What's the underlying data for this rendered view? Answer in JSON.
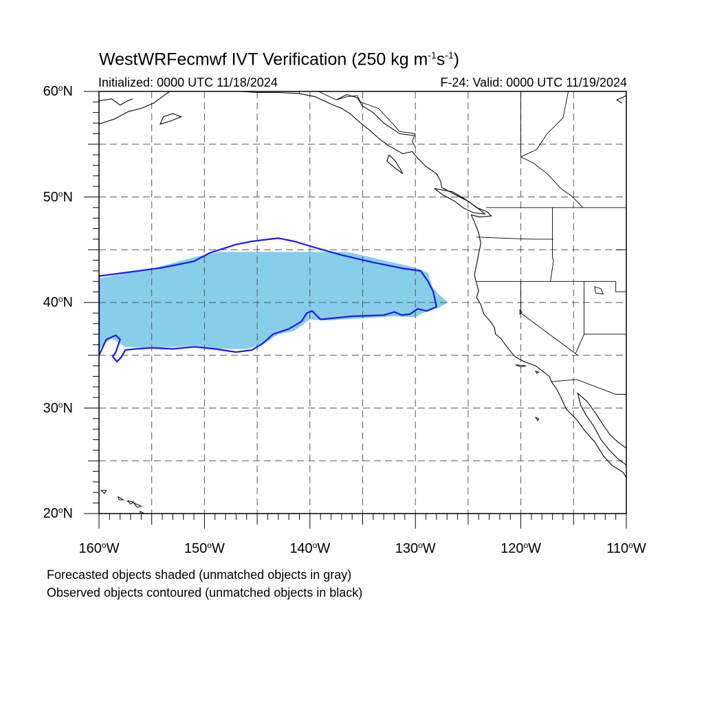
{
  "title": {
    "main": "WestWRFecmwf IVT Verification (250 kg m",
    "sup1": "-1",
    "mid": "s",
    "sup2": "-1",
    "end": ")"
  },
  "init_text": "Initialized: 0000 UTC 11/18/2024",
  "valid_text": "F-24: Valid: 0000 UTC 11/19/2024",
  "footnote_1": "Forecasted objects shaded (unmatched objects in gray)",
  "footnote_2": "Observed objects contoured (unmatched objects in black)",
  "map_extent": {
    "lon_min": -160,
    "lon_max": -110,
    "lat_min": 20,
    "lat_max": 60
  },
  "lat_ticks": [
    {
      "value": 60,
      "label": "60",
      "suffix": "N"
    },
    {
      "value": 50,
      "label": "50",
      "suffix": "N"
    },
    {
      "value": 40,
      "label": "40",
      "suffix": "N"
    },
    {
      "value": 30,
      "label": "30",
      "suffix": "N"
    },
    {
      "value": 20,
      "label": "20",
      "suffix": "N"
    }
  ],
  "lon_ticks": [
    {
      "value": -160,
      "label": "160",
      "suffix": "W"
    },
    {
      "value": -150,
      "label": "150",
      "suffix": "W"
    },
    {
      "value": -140,
      "label": "140",
      "suffix": "W"
    },
    {
      "value": -130,
      "label": "130",
      "suffix": "W"
    },
    {
      "value": -120,
      "label": "120",
      "suffix": "W"
    },
    {
      "value": -110,
      "label": "110",
      "suffix": "W"
    }
  ],
  "colors": {
    "forecast_fill": "#87ceeb",
    "observed_contour": "#1a1aee",
    "coastline": "#000000",
    "grid": "#555555"
  },
  "forecast_object": [
    [
      -160.0,
      42.3
    ],
    [
      -155.0,
      43.2
    ],
    [
      -151.0,
      44.3
    ],
    [
      -148.5,
      44.8
    ],
    [
      -143.0,
      44.8
    ],
    [
      -136.5,
      44.8
    ],
    [
      -133.0,
      44.0
    ],
    [
      -130.0,
      43.3
    ],
    [
      -128.8,
      42.8
    ],
    [
      -128.4,
      41.5
    ],
    [
      -127.8,
      40.8
    ],
    [
      -126.9,
      40.0
    ],
    [
      -127.8,
      39.5
    ],
    [
      -129.3,
      39.0
    ],
    [
      -130.0,
      38.6
    ],
    [
      -132.0,
      38.7
    ],
    [
      -135.0,
      38.5
    ],
    [
      -138.5,
      38.3
    ],
    [
      -140.0,
      38.4
    ],
    [
      -141.5,
      37.3
    ],
    [
      -143.0,
      37.0
    ],
    [
      -144.5,
      36.0
    ],
    [
      -146.0,
      35.6
    ],
    [
      -149.0,
      35.6
    ],
    [
      -151.0,
      35.9
    ],
    [
      -152.5,
      35.8
    ],
    [
      -155.0,
      35.7
    ],
    [
      -157.5,
      35.8
    ],
    [
      -158.8,
      36.6
    ],
    [
      -159.6,
      36.0
    ],
    [
      -160.0,
      35.5
    ]
  ],
  "observed_object": [
    [
      -160.0,
      42.5
    ],
    [
      -157.0,
      42.9
    ],
    [
      -154.0,
      43.3
    ],
    [
      -151.0,
      43.9
    ],
    [
      -149.5,
      44.7
    ],
    [
      -147.0,
      45.5
    ],
    [
      -145.5,
      45.8
    ],
    [
      -143.0,
      46.1
    ],
    [
      -141.5,
      45.8
    ],
    [
      -139.5,
      45.2
    ],
    [
      -137.0,
      44.5
    ],
    [
      -134.0,
      43.8
    ],
    [
      -131.0,
      43.2
    ],
    [
      -129.5,
      43.0
    ],
    [
      -128.8,
      42.0
    ],
    [
      -128.3,
      41.0
    ],
    [
      -128.0,
      39.6
    ],
    [
      -128.9,
      39.2
    ],
    [
      -129.8,
      39.4
    ],
    [
      -130.5,
      38.9
    ],
    [
      -131.3,
      38.8
    ],
    [
      -132.0,
      39.1
    ],
    [
      -133.0,
      38.8
    ],
    [
      -136.0,
      38.7
    ],
    [
      -139.0,
      38.4
    ],
    [
      -139.8,
      39.2
    ],
    [
      -140.3,
      39.0
    ],
    [
      -140.8,
      38.2
    ],
    [
      -142.0,
      37.5
    ],
    [
      -143.5,
      37.0
    ],
    [
      -144.5,
      36.1
    ],
    [
      -145.5,
      35.5
    ],
    [
      -147.0,
      35.3
    ],
    [
      -149.0,
      35.6
    ],
    [
      -151.0,
      35.8
    ],
    [
      -153.0,
      35.6
    ],
    [
      -155.0,
      35.7
    ],
    [
      -156.5,
      35.6
    ],
    [
      -157.5,
      35.5
    ],
    [
      -157.9,
      34.8
    ],
    [
      -158.3,
      34.4
    ],
    [
      -158.7,
      34.9
    ],
    [
      -158.4,
      35.3
    ],
    [
      -158.2,
      35.9
    ],
    [
      -158.0,
      36.5
    ],
    [
      -158.4,
      36.9
    ],
    [
      -159.3,
      36.5
    ],
    [
      -160.0,
      35.0
    ]
  ],
  "coastlines": [
    [
      [
        -160,
        56.9
      ],
      [
        -158.5,
        57.4
      ],
      [
        -157.2,
        58.1
      ],
      [
        -156.0,
        58.4
      ],
      [
        -154.8,
        58.9
      ],
      [
        -154.0,
        59.5
      ],
      [
        -153.3,
        60.0
      ]
    ],
    [
      [
        -160,
        59.1
      ],
      [
        -158.8,
        59.3
      ],
      [
        -158.0,
        58.7
      ],
      [
        -157.3,
        59.1
      ],
      [
        -156.8,
        59.3
      ]
    ],
    [
      [
        -153.9,
        57.6
      ],
      [
        -153.0,
        57.9
      ],
      [
        -152.2,
        57.6
      ],
      [
        -153.2,
        57.2
      ],
      [
        -154.2,
        56.9
      ],
      [
        -153.9,
        57.6
      ]
    ],
    [
      [
        -146.5,
        60.0
      ],
      [
        -145.0,
        59.9
      ],
      [
        -143.0,
        59.9
      ],
      [
        -141.0,
        59.8
      ],
      [
        -139.5,
        59.5
      ],
      [
        -138.0,
        58.8
      ],
      [
        -137.0,
        58.4
      ],
      [
        -136.2,
        57.9
      ],
      [
        -135.2,
        57.0
      ],
      [
        -134.3,
        56.3
      ],
      [
        -133.4,
        55.5
      ],
      [
        -132.6,
        54.9
      ],
      [
        -131.2,
        54.1
      ],
      [
        -130.3,
        54.3
      ],
      [
        -129.8,
        53.7
      ],
      [
        -129.0,
        52.9
      ],
      [
        -128.0,
        52.2
      ],
      [
        -127.6,
        51.5
      ],
      [
        -127.5,
        50.9
      ],
      [
        -126.0,
        50.1
      ],
      [
        -125.0,
        49.6
      ],
      [
        -124.2,
        49.0
      ],
      [
        -123.2,
        48.6
      ],
      [
        -122.8,
        48.2
      ],
      [
        -123.9,
        48.1
      ],
      [
        -124.7,
        48.3
      ],
      [
        -124.3,
        47.4
      ],
      [
        -124.0,
        46.6
      ],
      [
        -123.8,
        45.6
      ],
      [
        -124.0,
        44.6
      ],
      [
        -124.2,
        43.6
      ],
      [
        -124.4,
        42.6
      ],
      [
        -124.2,
        41.8
      ],
      [
        -124.0,
        41.1
      ],
      [
        -124.2,
        40.5
      ],
      [
        -123.8,
        39.8
      ],
      [
        -123.5,
        38.9
      ],
      [
        -122.8,
        38.1
      ],
      [
        -122.5,
        37.6
      ],
      [
        -122.4,
        37.0
      ],
      [
        -121.9,
        36.6
      ],
      [
        -121.4,
        35.9
      ],
      [
        -120.6,
        34.9
      ],
      [
        -119.7,
        34.4
      ],
      [
        -118.6,
        34.0
      ],
      [
        -118.2,
        33.7
      ],
      [
        -117.3,
        33.0
      ],
      [
        -117.1,
        32.5
      ],
      [
        -116.6,
        31.8
      ],
      [
        -116.2,
        31.0
      ],
      [
        -115.7,
        29.9
      ],
      [
        -114.7,
        28.9
      ],
      [
        -113.9,
        27.8
      ],
      [
        -113.0,
        26.8
      ],
      [
        -112.2,
        25.5
      ],
      [
        -111.4,
        24.6
      ],
      [
        -110.3,
        23.9
      ],
      [
        -110.0,
        23.4
      ]
    ],
    [
      [
        -110,
        26.2
      ],
      [
        -110.7,
        26.7
      ],
      [
        -111.5,
        27.4
      ],
      [
        -112.2,
        28.4
      ],
      [
        -112.9,
        29.5
      ],
      [
        -113.7,
        30.6
      ],
      [
        -114.6,
        31.4
      ],
      [
        -114.3,
        30.2
      ],
      [
        -113.8,
        29.3
      ],
      [
        -113.1,
        28.3
      ],
      [
        -112.4,
        27.0
      ],
      [
        -111.6,
        26.0
      ],
      [
        -110.8,
        25.2
      ],
      [
        -110,
        24.6
      ]
    ],
    [
      [
        -128.2,
        50.8
      ],
      [
        -127.4,
        50.2
      ],
      [
        -126.3,
        49.6
      ],
      [
        -125.5,
        49.0
      ],
      [
        -124.5,
        48.5
      ],
      [
        -123.4,
        48.4
      ],
      [
        -124.3,
        49.1
      ],
      [
        -125.3,
        49.8
      ],
      [
        -126.5,
        50.5
      ],
      [
        -128.2,
        50.8
      ]
    ],
    [
      [
        -132.5,
        54.0
      ],
      [
        -131.9,
        53.4
      ],
      [
        -131.4,
        52.6
      ],
      [
        -131.2,
        52.2
      ],
      [
        -132.0,
        52.8
      ],
      [
        -132.7,
        53.4
      ],
      [
        -132.5,
        54.0
      ]
    ],
    [
      [
        -130.0,
        55.8
      ],
      [
        -131.5,
        56.0
      ],
      [
        -133.0,
        57.0
      ],
      [
        -134.0,
        58.0
      ],
      [
        -135.0,
        58.6
      ],
      [
        -135.5,
        59.4
      ],
      [
        -136.5,
        59.7
      ],
      [
        -137.5,
        59.2
      ]
    ],
    [
      [
        -110,
        59.6
      ],
      [
        -110.9,
        59.2
      ],
      [
        -110.4,
        58.9
      ]
    ]
  ],
  "borders": [
    [
      [
        -141.0,
        60.0
      ],
      [
        -141.0,
        59.8
      ]
    ],
    [
      [
        -139.2,
        60.0
      ],
      [
        -137.5,
        59.2
      ],
      [
        -136.5,
        59.5
      ],
      [
        -135.5,
        59.6
      ],
      [
        -135.2,
        59.0
      ],
      [
        -133.5,
        58.4
      ],
      [
        -132.2,
        57.0
      ],
      [
        -131.5,
        56.2
      ],
      [
        -130.0,
        56.0
      ],
      [
        -130.3,
        55.3
      ],
      [
        -130.0,
        54.7
      ]
    ],
    [
      [
        -123.3,
        49.0
      ],
      [
        -110.0,
        49.0
      ]
    ],
    [
      [
        -124.2,
        46.2
      ],
      [
        -119.0,
        46.0
      ],
      [
        -116.9,
        46.0
      ]
    ],
    [
      [
        -117.0,
        49.0
      ],
      [
        -117.0,
        44.2
      ],
      [
        -116.9,
        44.0
      ],
      [
        -117.2,
        42.0
      ]
    ],
    [
      [
        -124.2,
        42.0
      ],
      [
        -111.0,
        42.0
      ],
      [
        -111.0,
        41.0
      ],
      [
        -110.0,
        41.0
      ]
    ],
    [
      [
        -120.0,
        42.0
      ],
      [
        -120.0,
        39.0
      ],
      [
        -114.6,
        35.0
      ]
    ],
    [
      [
        -114.0,
        42.0
      ],
      [
        -114.0,
        37.0
      ],
      [
        -110,
        37.0
      ]
    ],
    [
      [
        -114.0,
        37.0
      ],
      [
        -114.8,
        35.2
      ]
    ],
    [
      [
        -117.1,
        32.5
      ],
      [
        -114.7,
        32.7
      ],
      [
        -111.0,
        31.3
      ],
      [
        -110.0,
        31.3
      ]
    ],
    [
      [
        -111.0,
        45.0
      ],
      [
        -110.0,
        45.0
      ]
    ],
    [
      [
        -115.5,
        60.0
      ],
      [
        -116.0,
        57.5
      ],
      [
        -117.5,
        56.0
      ],
      [
        -118.5,
        54.5
      ],
      [
        -120.0,
        53.8
      ],
      [
        -120.0,
        60.0
      ]
    ],
    [
      [
        -120.0,
        53.8
      ],
      [
        -118.8,
        53.2
      ],
      [
        -117.5,
        52.2
      ],
      [
        -116.2,
        50.8
      ],
      [
        -115.2,
        50.1
      ],
      [
        -114.1,
        49.0
      ]
    ]
  ],
  "lakes": [
    [
      [
        -113.0,
        41.5
      ],
      [
        -112.4,
        41.3
      ],
      [
        -112.2,
        40.8
      ],
      [
        -112.9,
        40.9
      ],
      [
        -113.0,
        41.5
      ]
    ],
    [
      [
        -120.1,
        39.3
      ],
      [
        -119.9,
        39.1
      ],
      [
        -120.1,
        38.9
      ],
      [
        -120.1,
        39.3
      ]
    ]
  ],
  "islands": [
    [
      [
        -159.8,
        22.2
      ],
      [
        -159.3,
        22.2
      ],
      [
        -159.5,
        21.9
      ],
      [
        -159.8,
        22.2
      ]
    ],
    [
      [
        -158.2,
        21.6
      ],
      [
        -157.7,
        21.3
      ],
      [
        -158.1,
        21.3
      ],
      [
        -158.2,
        21.6
      ]
    ],
    [
      [
        -157.3,
        21.2
      ],
      [
        -156.7,
        21.1
      ],
      [
        -157.0,
        20.9
      ],
      [
        -157.3,
        21.2
      ]
    ],
    [
      [
        -156.7,
        21.0
      ],
      [
        -156.0,
        20.7
      ],
      [
        -156.4,
        20.6
      ],
      [
        -156.7,
        21.0
      ]
    ],
    [
      [
        -156.1,
        20.2
      ],
      [
        -155.0,
        19.7
      ],
      [
        -155.6,
        19.1
      ],
      [
        -156.0,
        19.6
      ],
      [
        -156.1,
        20.2
      ]
    ],
    [
      [
        -120.5,
        34.1
      ],
      [
        -119.5,
        34.0
      ],
      [
        -120.0,
        33.9
      ],
      [
        -120.5,
        34.1
      ]
    ],
    [
      [
        -118.6,
        33.5
      ],
      [
        -118.3,
        33.4
      ],
      [
        -118.5,
        33.3
      ],
      [
        -118.6,
        33.5
      ]
    ],
    [
      [
        -118.6,
        29.1
      ],
      [
        -118.3,
        29.0
      ],
      [
        -118.4,
        28.8
      ],
      [
        -118.6,
        29.1
      ]
    ]
  ]
}
